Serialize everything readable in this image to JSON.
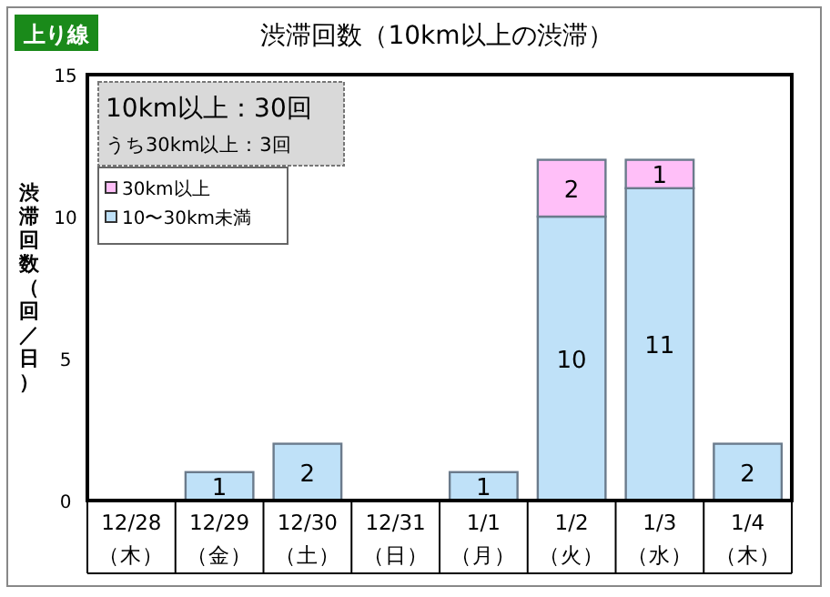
{
  "chart_data": {
    "type": "bar",
    "title": "渋滞回数（10km以上の渋滞）",
    "ylabel": "渋滞回数（回／日）",
    "annotations": [
      "上り線",
      "10km以上：30回",
      "うち30km以上：3回"
    ],
    "categories": [
      "12/28\n（木）",
      "12/29\n（金）",
      "12/30\n（土）",
      "12/31\n（日）",
      "1/1\n（月）",
      "1/2\n（火）",
      "1/3\n（水）",
      "1/4\n（木）"
    ],
    "stacked": true,
    "series": [
      {
        "name": "10〜30km未満",
        "color": "#bfe1f8",
        "values": [
          0,
          1,
          2,
          0,
          1,
          10,
          11,
          2
        ],
        "value_labels": [
          null,
          "1",
          "2",
          null,
          "1",
          "10",
          "11",
          "2"
        ]
      },
      {
        "name": "30km以上",
        "color": "#ffbff8",
        "values": [
          0,
          0,
          0,
          0,
          0,
          2,
          1,
          0
        ],
        "value_labels": [
          null,
          null,
          null,
          null,
          null,
          "2",
          "1",
          null
        ]
      }
    ],
    "ylim": [
      0,
      15
    ],
    "yticks": [
      0,
      5,
      10,
      15
    ],
    "grid": false,
    "legend": "top left"
  }
}
